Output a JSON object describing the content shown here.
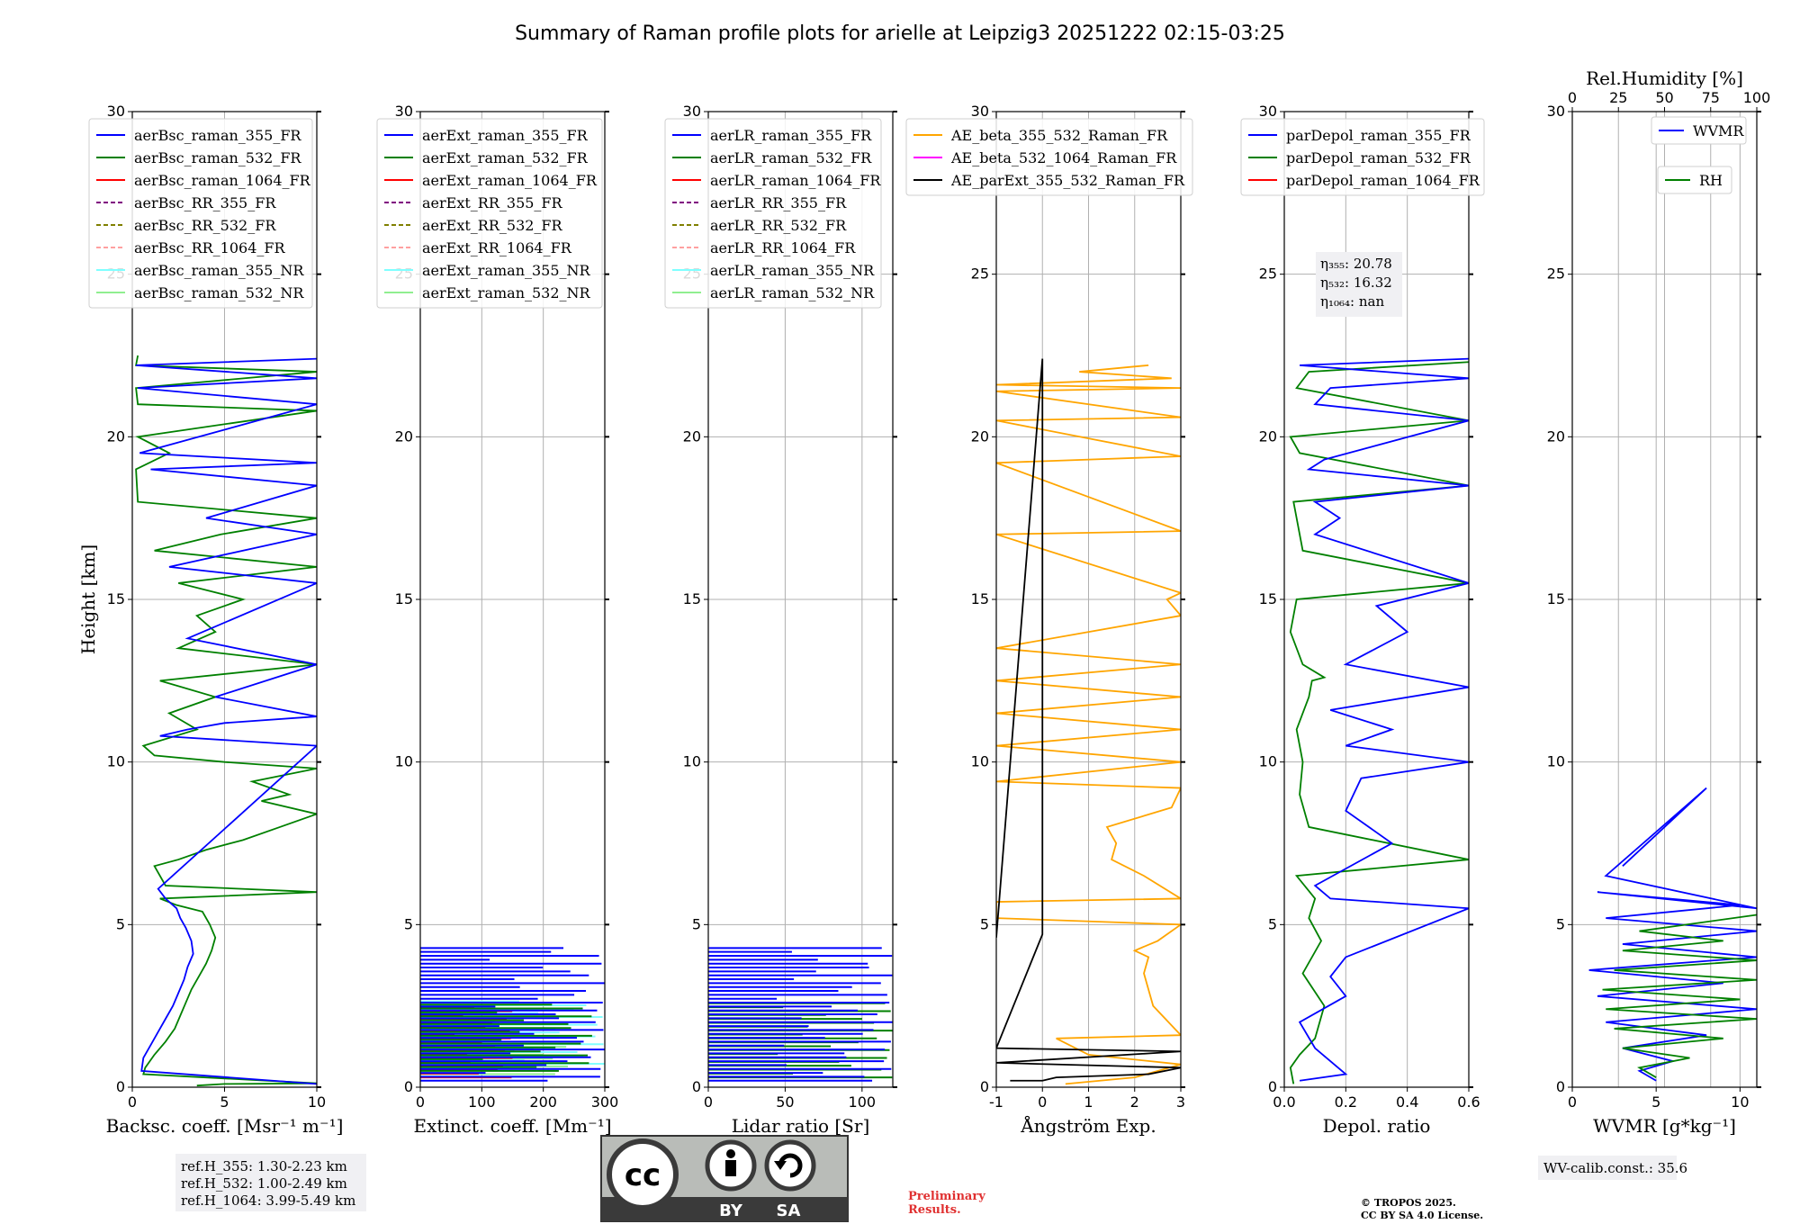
{
  "title": "Summary of Raman profile plots for arielle at Leipzig3 20251222 02:15-03:25",
  "footer": {
    "ref_lines": [
      "ref.H_355: 1.30-2.23 km",
      "ref.H_532: 1.00-2.49 km",
      "ref.H_1064: 3.99-5.49 km"
    ],
    "license_badge": {
      "cc": "cc",
      "by": "BY",
      "sa": "SA"
    },
    "preliminary_lines": [
      "Preliminary",
      "Results."
    ],
    "copyright_lines": [
      "© TROPOS 2025.",
      "CC BY SA 4.0 License."
    ],
    "wv_calib": "WV-calib.const.: 35.6",
    "colors": {
      "preliminary": "#e03030",
      "badge_bg": "#b9bcb8",
      "badge_dark": "#3a3a3a"
    }
  },
  "chart_data": [
    {
      "type": "line",
      "name": "backscatter",
      "xlabel": "Backsc. coeff. [Msr⁻¹ m⁻¹]",
      "ylabel": "Height [km]",
      "xlim": [
        0,
        10
      ],
      "ylim": [
        0,
        30
      ],
      "xticks": [
        0,
        5,
        10
      ],
      "yticks": [
        0,
        5,
        10,
        15,
        20,
        25,
        30
      ],
      "legend": [
        {
          "label": "aerBsc_raman_355_FR",
          "color": "#0000ff",
          "dash": ""
        },
        {
          "label": "aerBsc_raman_532_FR",
          "color": "#008000",
          "dash": ""
        },
        {
          "label": "aerBsc_raman_1064_FR",
          "color": "#ff0000",
          "dash": ""
        },
        {
          "label": "aerBsc_RR_355_FR",
          "color": "#800080",
          "dash": "5,3"
        },
        {
          "label": "aerBsc_RR_532_FR",
          "color": "#808000",
          "dash": "5,3"
        },
        {
          "label": "aerBsc_RR_1064_FR",
          "color": "#ffa0a0",
          "dash": "5,3"
        },
        {
          "label": "aerBsc_raman_355_NR",
          "color": "#80ffff",
          "dash": ""
        },
        {
          "label": "aerBsc_raman_532_NR",
          "color": "#90ee90",
          "dash": ""
        }
      ],
      "series": [
        {
          "name": "aerBsc_raman_532_FR",
          "color": "#008000",
          "x": [
            3.5,
            5,
            10,
            0.6,
            0.7,
            1.2,
            1.8,
            2.3,
            2.6,
            2.9,
            3.2,
            3.6,
            4.0,
            4.3,
            4.5,
            4.2,
            3.8,
            2.4,
            1.5,
            10,
            1.8,
            1.2,
            2.5,
            4,
            6,
            8,
            10,
            7,
            8.5,
            6.5,
            10,
            5,
            1.2,
            0.6,
            3.5,
            2,
            4.5,
            1.5,
            10,
            2.5,
            4.5,
            3.5,
            6,
            2.5,
            10,
            1.2,
            4.8,
            10,
            0.3,
            0.2,
            2,
            0.3,
            10,
            0.3,
            0.2,
            10,
            0.2,
            0.3
          ],
          "y": [
            0.05,
            0.1,
            0.12,
            0.4,
            0.6,
            1.0,
            1.4,
            1.8,
            2.2,
            2.6,
            3.0,
            3.4,
            3.8,
            4.2,
            4.6,
            5.0,
            5.4,
            5.6,
            5.8,
            6.0,
            6.2,
            6.8,
            7.0,
            7.3,
            7.6,
            8.0,
            8.4,
            8.8,
            9.0,
            9.4,
            9.8,
            10.0,
            10.2,
            10.5,
            11.0,
            11.5,
            12.0,
            12.5,
            13.0,
            13.5,
            14.0,
            14.5,
            15.0,
            15.5,
            16.0,
            16.5,
            17.0,
            17.5,
            18.0,
            19.0,
            19.5,
            20.0,
            20.8,
            21.0,
            21.5,
            22.0,
            22.2,
            22.5
          ]
        },
        {
          "name": "aerBsc_raman_355_FR",
          "color": "#0000ff",
          "x": [
            10,
            0.5,
            0.6,
            1.0,
            1.4,
            1.8,
            2.2,
            2.5,
            2.8,
            3.0,
            3.3,
            3.2,
            2.9,
            2.6,
            2.4,
            1.8,
            1.4,
            10,
            1.5,
            3,
            5,
            10,
            4.5,
            10,
            3,
            10,
            2,
            10,
            4,
            10,
            1,
            10,
            0.4,
            10,
            0.3,
            10,
            0.2,
            10
          ],
          "y": [
            0.1,
            0.5,
            0.9,
            1.3,
            1.7,
            2.1,
            2.5,
            2.9,
            3.3,
            3.7,
            4.1,
            4.5,
            4.9,
            5.2,
            5.5,
            5.8,
            6.1,
            10.5,
            10.8,
            11.0,
            11.2,
            11.4,
            12.0,
            13.0,
            13.8,
            15.5,
            16.0,
            17.0,
            17.5,
            18.5,
            19.0,
            19.2,
            19.5,
            21.0,
            21.5,
            21.8,
            22.2,
            22.4
          ]
        }
      ]
    },
    {
      "type": "line",
      "name": "extinction",
      "xlabel": "Extinct. coeff. [Mm⁻¹]",
      "xlim": [
        0,
        300
      ],
      "ylim": [
        0,
        30
      ],
      "xticks": [
        0,
        100,
        200,
        300
      ],
      "yticks": [
        0,
        5,
        10,
        15,
        20,
        25,
        30
      ],
      "legend": [
        {
          "label": "aerExt_raman_355_FR",
          "color": "#0000ff",
          "dash": ""
        },
        {
          "label": "aerExt_raman_532_FR",
          "color": "#008000",
          "dash": ""
        },
        {
          "label": "aerExt_raman_1064_FR",
          "color": "#ff0000",
          "dash": ""
        },
        {
          "label": "aerExt_RR_355_FR",
          "color": "#800080",
          "dash": "5,3"
        },
        {
          "label": "aerExt_RR_532_FR",
          "color": "#808000",
          "dash": "5,3"
        },
        {
          "label": "aerExt_RR_1064_FR",
          "color": "#ffa0a0",
          "dash": "5,3"
        },
        {
          "label": "aerExt_raman_355_NR",
          "color": "#80ffff",
          "dash": ""
        },
        {
          "label": "aerExt_raman_532_NR",
          "color": "#90ee90",
          "dash": ""
        }
      ],
      "bands": [
        {
          "color": "#80ffff",
          "x": [
            0,
            300
          ],
          "y": [
            0.6,
            2.7
          ]
        },
        {
          "color": "#90ee90",
          "x": [
            0,
            240
          ],
          "y": [
            0.4,
            1.3
          ]
        },
        {
          "color": "#ff0000",
          "x": [
            0,
            150
          ],
          "y": [
            0.3,
            2.5
          ]
        },
        {
          "color": "#008000",
          "x": [
            0,
            280
          ],
          "y": [
            0.5,
            2.6
          ]
        },
        {
          "color": "#0000ff",
          "x": [
            0,
            300
          ],
          "y": [
            0.2,
            4.4
          ]
        }
      ]
    },
    {
      "type": "line",
      "name": "lidar_ratio",
      "xlabel": "Lidar ratio [Sr]",
      "xlim": [
        0,
        120
      ],
      "ylim": [
        0,
        30
      ],
      "xticks": [
        0,
        50,
        100
      ],
      "yticks": [
        0,
        5,
        10,
        15,
        20,
        25,
        30
      ],
      "legend": [
        {
          "label": "aerLR_raman_355_FR",
          "color": "#0000ff",
          "dash": ""
        },
        {
          "label": "aerLR_raman_532_FR",
          "color": "#008000",
          "dash": ""
        },
        {
          "label": "aerLR_raman_1064_FR",
          "color": "#ff0000",
          "dash": ""
        },
        {
          "label": "aerLR_RR_355_FR",
          "color": "#800080",
          "dash": "5,3"
        },
        {
          "label": "aerLR_RR_532_FR",
          "color": "#808000",
          "dash": "5,3"
        },
        {
          "label": "aerLR_RR_1064_FR",
          "color": "#ffa0a0",
          "dash": "5,3"
        },
        {
          "label": "aerLR_raman_355_NR",
          "color": "#80ffff",
          "dash": ""
        },
        {
          "label": "aerLR_raman_532_NR",
          "color": "#90ee90",
          "dash": ""
        }
      ],
      "bands": [
        {
          "color": "#008000",
          "x": [
            0,
            120
          ],
          "y": [
            0.3,
            2.6
          ]
        },
        {
          "color": "#0000ff",
          "x": [
            0,
            120
          ],
          "y": [
            0.2,
            4.4
          ]
        }
      ]
    },
    {
      "type": "line",
      "name": "angstrom",
      "xlabel": "Ångström Exp.",
      "xlim": [
        -1,
        3
      ],
      "ylim": [
        0,
        30
      ],
      "xticks": [
        -1,
        0,
        1,
        2,
        3
      ],
      "yticks": [
        0,
        5,
        10,
        15,
        20,
        25,
        30
      ],
      "legend": [
        {
          "label": "AE_beta_355_532_Raman_FR",
          "color": "#ffa500",
          "dash": ""
        },
        {
          "label": "AE_beta_532_1064_Raman_FR",
          "color": "#ff00ff",
          "dash": ""
        },
        {
          "label": "AE_parExt_355_532_Raman_FR",
          "color": "#000000",
          "dash": ""
        }
      ],
      "series": [
        {
          "name": "AE_beta_355_532_Raman_FR",
          "color": "#ffa500",
          "x": [
            0.5,
            2.0,
            3,
            1.0,
            0.3,
            3,
            2.4,
            2.2,
            2.3,
            2.0,
            2.5,
            3,
            -1,
            -1,
            3,
            2.2,
            1.5,
            1.6,
            1.4,
            2.8,
            3,
            -1,
            3,
            -1,
            3,
            -1,
            3,
            -1,
            3,
            -1,
            3,
            2.7,
            3,
            -1,
            3,
            -1,
            3,
            -1,
            3,
            -1,
            3,
            -1,
            2.8,
            0.8,
            2.3
          ],
          "y": [
            0.1,
            0.3,
            0.7,
            1.0,
            1.5,
            1.6,
            2.5,
            3.5,
            4.0,
            4.2,
            4.5,
            5.0,
            5.2,
            5.7,
            5.8,
            6.5,
            7.0,
            7.5,
            8.0,
            8.6,
            9.2,
            9.4,
            10.0,
            10.5,
            11.0,
            11.5,
            12.0,
            12.5,
            13.0,
            13.5,
            14.5,
            15.0,
            15.2,
            17.0,
            17.1,
            19.2,
            19.4,
            20.5,
            20.6,
            21.4,
            21.5,
            21.6,
            21.8,
            22.0,
            22.2
          ]
        },
        {
          "name": "AE_parExt_355_532_Raman_FR",
          "color": "#000000",
          "x": [
            -0.7,
            0.0,
            0.3,
            2.3,
            3,
            -1,
            3,
            -1,
            0.0,
            0.0,
            -1
          ],
          "y": [
            0.2,
            0.2,
            0.3,
            0.4,
            0.6,
            0.75,
            1.1,
            1.2,
            4.7,
            22.4,
            4.6
          ]
        }
      ]
    },
    {
      "type": "line",
      "name": "depolarization",
      "xlabel": "Depol. ratio",
      "xlim": [
        0,
        0.6
      ],
      "ylim": [
        0,
        30
      ],
      "xticks": [
        0.0,
        0.2,
        0.4,
        0.6
      ],
      "yticks": [
        0,
        5,
        10,
        15,
        20,
        25,
        30
      ],
      "annotation": [
        "η₃₅₅: 20.78",
        "η₅₃₂: 16.32",
        "η₁₀₆₄: nan"
      ],
      "legend": [
        {
          "label": "parDepol_raman_355_FR",
          "color": "#0000ff",
          "dash": ""
        },
        {
          "label": "parDepol_raman_532_FR",
          "color": "#008000",
          "dash": ""
        },
        {
          "label": "parDepol_raman_1064_FR",
          "color": "#ff0000",
          "dash": ""
        }
      ],
      "series": [
        {
          "name": "parDepol_raman_532_FR",
          "color": "#008000",
          "x": [
            0.03,
            0.02,
            0.05,
            0.1,
            0.13,
            0.06,
            0.12,
            0.08,
            0.1,
            0.04,
            0.6,
            0.08,
            0.05,
            0.06,
            0.04,
            0.06,
            0.08,
            0.09,
            0.13,
            0.06,
            0.02,
            0.04,
            0.6,
            0.06,
            0.03,
            0.6,
            0.05,
            0.02,
            0.6,
            0.04,
            0.08,
            0.6
          ],
          "y": [
            0.1,
            0.6,
            1.0,
            1.5,
            2.5,
            3.5,
            4.5,
            5.2,
            5.8,
            6.5,
            7.0,
            8.0,
            9.0,
            10.0,
            11.0,
            11.5,
            12.0,
            12.5,
            12.6,
            13.0,
            14.0,
            15.0,
            15.5,
            16.5,
            18.0,
            18.5,
            19.5,
            20.0,
            20.5,
            21.5,
            22.0,
            22.3
          ]
        },
        {
          "name": "parDepol_raman_355_FR",
          "color": "#0000ff",
          "x": [
            0.05,
            0.2,
            0.1,
            0.05,
            0.2,
            0.15,
            0.2,
            0.6,
            0.15,
            0.1,
            0.35,
            0.2,
            0.25,
            0.6,
            0.2,
            0.35,
            0.15,
            0.6,
            0.2,
            0.4,
            0.3,
            0.6,
            0.1,
            0.18,
            0.1,
            0.6,
            0.08,
            0.13,
            0.6,
            0.1,
            0.15,
            0.6,
            0.05,
            0.6
          ],
          "y": [
            0.2,
            0.4,
            1.2,
            2.0,
            2.8,
            3.4,
            4.0,
            5.5,
            5.8,
            6.2,
            7.5,
            8.5,
            9.5,
            10.0,
            10.5,
            11.0,
            11.6,
            12.3,
            13.0,
            14.0,
            14.8,
            15.5,
            17.0,
            17.5,
            18.0,
            18.5,
            19.0,
            19.3,
            20.5,
            21.0,
            21.5,
            21.8,
            22.2,
            22.4
          ]
        }
      ]
    },
    {
      "type": "line",
      "name": "water_vapor",
      "xlabel": "WVMR [g*kg⁻¹]",
      "top_xlabel": "Rel.Humidity [%]",
      "xlim": [
        0,
        11
      ],
      "ylim": [
        0,
        30
      ],
      "top_xlim": [
        0,
        100
      ],
      "xticks": [
        0,
        5,
        10
      ],
      "top_xticks": [
        0,
        25,
        50,
        75,
        100
      ],
      "yticks": [
        0,
        5,
        10,
        15,
        20,
        25,
        30
      ],
      "legend": [
        {
          "label": "WVMR",
          "color": "#0000ff",
          "dash": ""
        },
        {
          "label": "RH",
          "color": "#008000",
          "dash": ""
        }
      ],
      "series": [
        {
          "name": "WVMR",
          "color": "#0000ff",
          "x": [
            5,
            4,
            6,
            3,
            8,
            2,
            11,
            1.5,
            9,
            1.0,
            11,
            3,
            11,
            2,
            10,
            1.5,
            11,
            2,
            8,
            3
          ],
          "y": [
            0.2,
            0.5,
            0.8,
            1.2,
            1.6,
            2.0,
            2.4,
            2.8,
            3.2,
            3.6,
            4.0,
            4.4,
            4.8,
            5.2,
            5.6,
            6.0,
            5.5,
            6.5,
            9.2,
            6.8
          ]
        },
        {
          "name": "RH",
          "color": "#008000",
          "x": [
            5,
            4,
            7,
            3,
            9,
            2.5,
            11,
            2,
            10,
            1.8,
            11,
            2.5,
            11,
            3,
            9,
            4,
            11
          ],
          "y": [
            0.3,
            0.6,
            0.9,
            1.2,
            1.5,
            1.8,
            2.1,
            2.4,
            2.7,
            3.0,
            3.3,
            3.6,
            3.9,
            4.2,
            4.5,
            4.8,
            5.3
          ]
        }
      ]
    }
  ]
}
